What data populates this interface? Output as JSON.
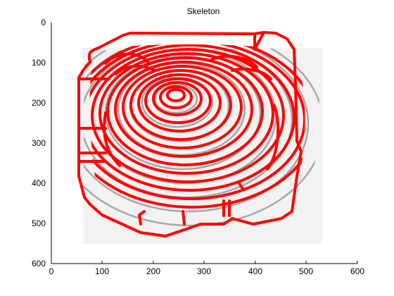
{
  "figure": {
    "title": "Skeleton",
    "y_ticks": [
      "0",
      "100",
      "200",
      "300",
      "400",
      "500",
      "600"
    ],
    "x_ticks": [
      "0",
      "100",
      "200",
      "300",
      "400",
      "500",
      "600"
    ],
    "overlay_color": "#ff0000",
    "background_color": "#ffffff"
  }
}
